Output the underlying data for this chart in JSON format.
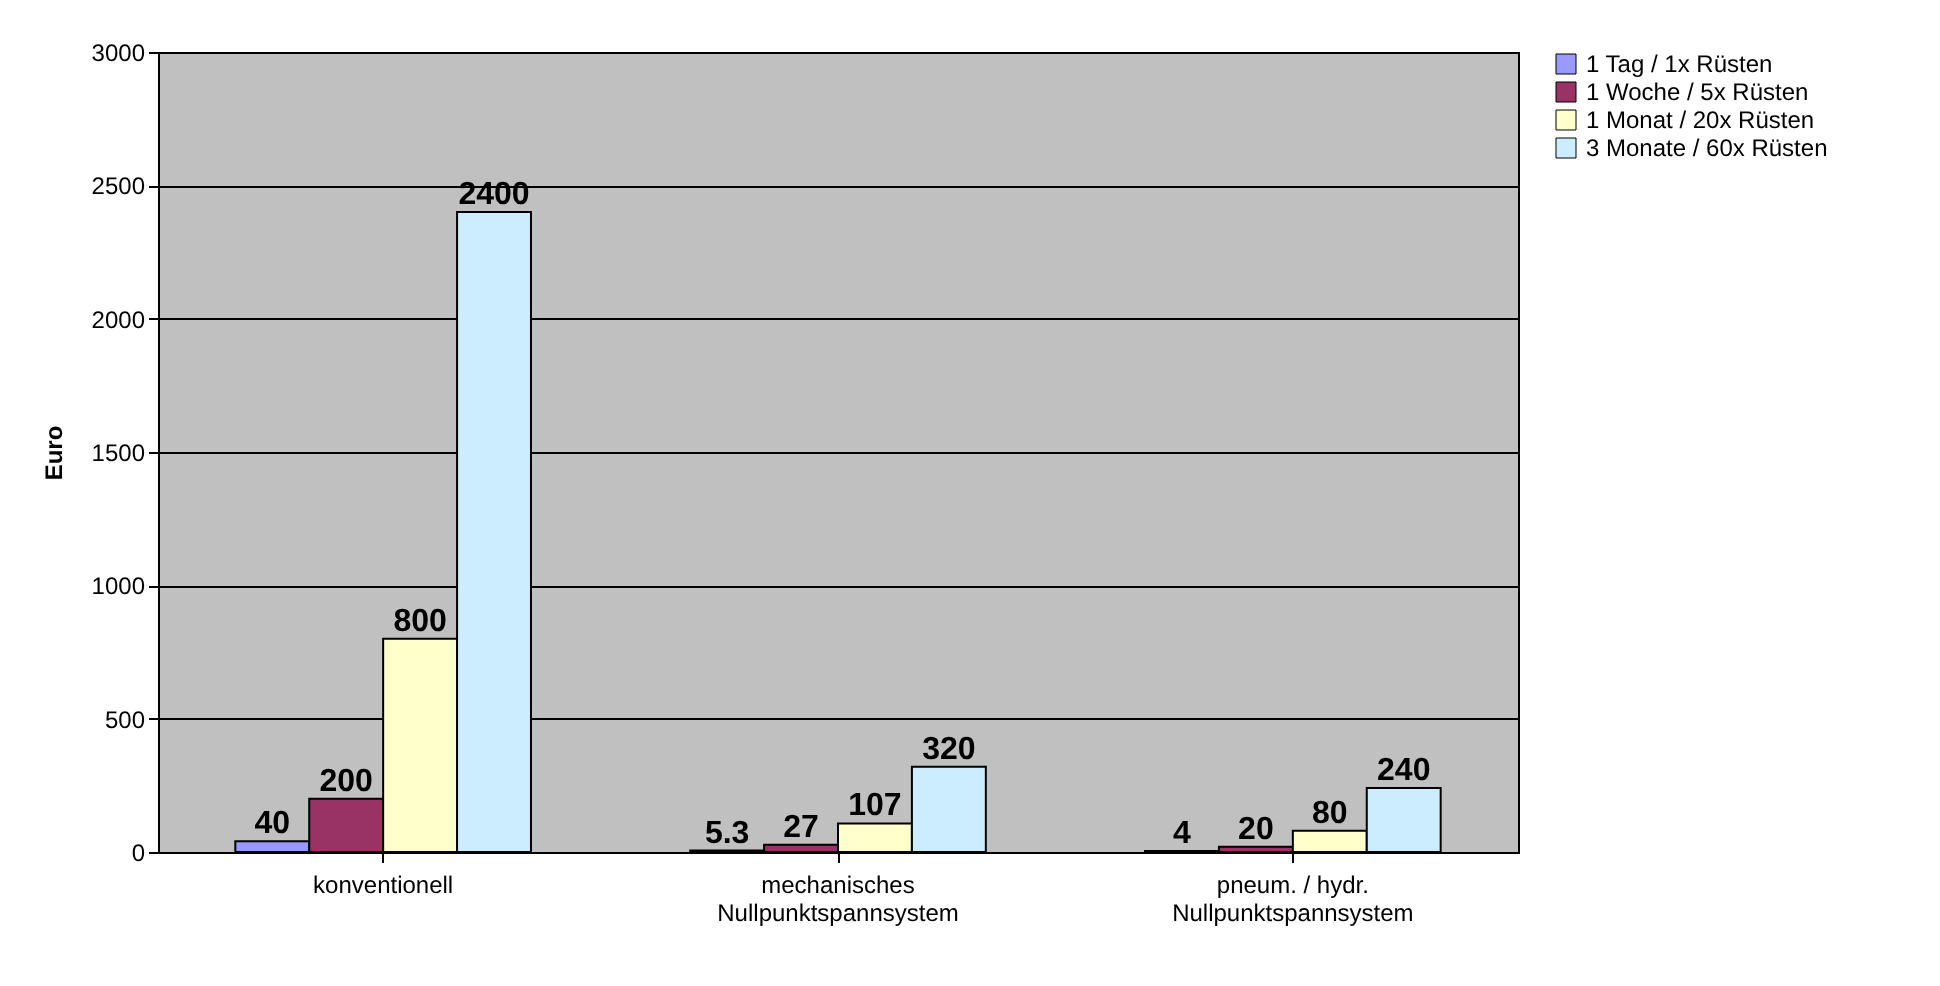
{
  "chart_data": {
    "type": "bar",
    "ylabel": "Euro",
    "categories": [
      "konventionell",
      "mechanisches Nullpunktspannsystem",
      "pneum. / hydr. Nullpunktspannsystem"
    ],
    "series": [
      {
        "name": "1 Tag / 1x Rüsten",
        "color": "#9999ff",
        "values": [
          40,
          5.3,
          4
        ]
      },
      {
        "name": "1 Woche / 5x Rüsten",
        "color": "#993366",
        "values": [
          200,
          27,
          20
        ]
      },
      {
        "name": "1 Monat / 20x Rüsten",
        "color": "#ffffcc",
        "values": [
          800,
          107,
          80
        ]
      },
      {
        "name": "3 Monate / 60x Rüsten",
        "color": "#ccecff",
        "values": [
          2400,
          320,
          240
        ]
      }
    ],
    "ylim": [
      0,
      3000
    ],
    "yticks": [
      0,
      500,
      {
        "value": 1000,
        "label": "1000"
      },
      {
        "value": 1500,
        "label": "1500"
      },
      {
        "value": 2000,
        "label": "2000"
      },
      {
        "value": 2500,
        "label": "2500"
      },
      {
        "value": 3000,
        "label": "3000"
      }
    ],
    "grid": "y",
    "legend": "right",
    "data_labels": true
  }
}
